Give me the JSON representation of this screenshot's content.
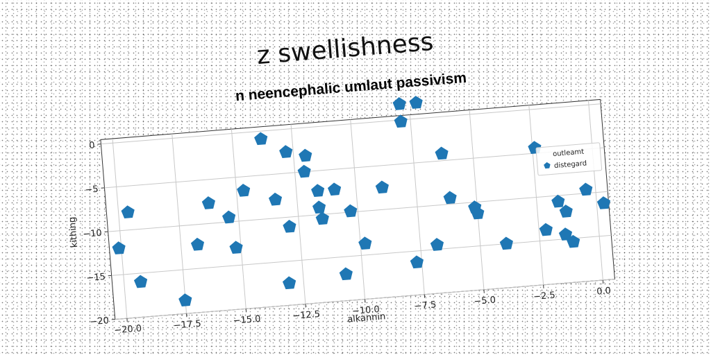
{
  "chart_data": {
    "type": "scatter",
    "title": "z swellishness",
    "subtitle": "n neencephalic umlaut passivism",
    "xlabel": "alkannin",
    "ylabel": "kithing",
    "xlim": [
      -20.5,
      0.5
    ],
    "ylim": [
      -20,
      0.5
    ],
    "xticks": [
      -20.0,
      -17.5,
      -15.0,
      -12.5,
      -10.0,
      -7.5,
      -5.0,
      -2.5,
      0.0
    ],
    "xtick_labels": [
      "−20.0",
      "−17.5",
      "−15.0",
      "−12.5",
      "−10.0",
      "−7.5",
      "−5.0",
      "−2.5",
      "0.0"
    ],
    "yticks": [
      0,
      -5,
      -10,
      -15,
      -20
    ],
    "ytick_labels": [
      "0",
      "−5",
      "−10",
      "−15",
      "−20"
    ],
    "grid": true,
    "legend": {
      "title": "outleamt",
      "position": "right",
      "entries": [
        "distegard"
      ]
    },
    "series": [
      {
        "name": "distegard",
        "color": "#1f77b4",
        "marker": "pentagon",
        "points": [
          [
            -20.1,
            -12.0
          ],
          [
            -19.6,
            -8.0
          ],
          [
            -19.3,
            -16.0
          ],
          [
            -17.5,
            -18.5
          ],
          [
            -16.8,
            -12.3
          ],
          [
            -16.2,
            -7.7
          ],
          [
            -15.4,
            -9.5
          ],
          [
            -15.2,
            -13.0
          ],
          [
            -14.7,
            -6.6
          ],
          [
            -13.8,
            -0.9
          ],
          [
            -13.4,
            -7.9
          ],
          [
            -13.1,
            -17.5
          ],
          [
            -12.9,
            -11.1
          ],
          [
            -12.8,
            -2.6
          ],
          [
            -12.1,
            -5.0
          ],
          [
            -12.0,
            -3.2
          ],
          [
            -11.6,
            -7.3
          ],
          [
            -11.6,
            -9.2
          ],
          [
            -11.5,
            -10.5
          ],
          [
            -10.9,
            -7.3
          ],
          [
            -10.7,
            -17.0
          ],
          [
            -10.3,
            -9.9
          ],
          [
            -9.8,
            -13.7
          ],
          [
            -8.9,
            -7.5
          ],
          [
            -7.9,
            1.8
          ],
          [
            -7.9,
            -0.2
          ],
          [
            -7.7,
            -16.3
          ],
          [
            -7.2,
            1.8
          ],
          [
            -6.8,
            -14.5
          ],
          [
            -6.3,
            -4.2
          ],
          [
            -6.1,
            -9.3
          ],
          [
            -5.1,
            -10.6
          ],
          [
            -5.0,
            -11.3
          ],
          [
            -3.9,
            -15.0
          ],
          [
            -2.4,
            -4.4
          ],
          [
            -2.2,
            -13.8
          ],
          [
            -1.6,
            -10.7
          ],
          [
            -1.4,
            -14.5
          ],
          [
            -1.3,
            -11.9
          ],
          [
            -1.1,
            -15.4
          ],
          [
            -0.4,
            -9.6
          ],
          [
            0.3,
            -11.3
          ]
        ]
      }
    ]
  }
}
